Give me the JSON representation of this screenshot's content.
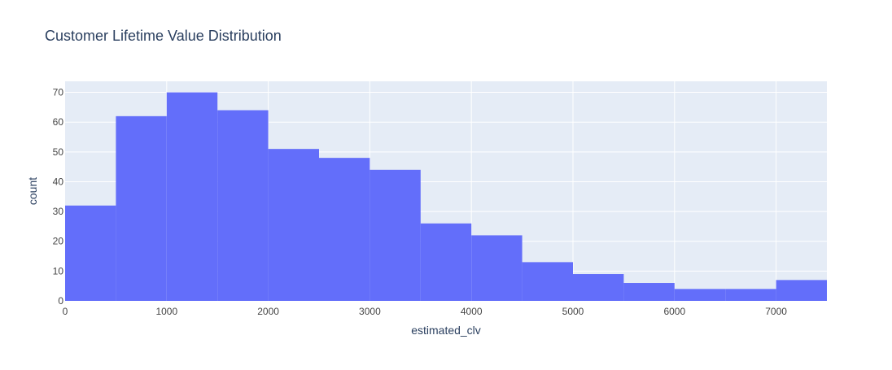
{
  "chart_data": {
    "type": "bar",
    "title": "Customer Lifetime Value Distribution",
    "xlabel": "estimated_clv",
    "ylabel": "count",
    "bin_width": 500,
    "bins": [
      {
        "x0": 0,
        "x1": 500,
        "count": 32
      },
      {
        "x0": 500,
        "x1": 1000,
        "count": 62
      },
      {
        "x0": 1000,
        "x1": 1500,
        "count": 70
      },
      {
        "x0": 1500,
        "x1": 2000,
        "count": 64
      },
      {
        "x0": 2000,
        "x1": 2500,
        "count": 51
      },
      {
        "x0": 2500,
        "x1": 3000,
        "count": 48
      },
      {
        "x0": 3000,
        "x1": 3500,
        "count": 44
      },
      {
        "x0": 3500,
        "x1": 4000,
        "count": 26
      },
      {
        "x0": 4000,
        "x1": 4500,
        "count": 22
      },
      {
        "x0": 4500,
        "x1": 5000,
        "count": 13
      },
      {
        "x0": 5000,
        "x1": 5500,
        "count": 9
      },
      {
        "x0": 5500,
        "x1": 6000,
        "count": 6
      },
      {
        "x0": 6000,
        "x1": 6500,
        "count": 4
      },
      {
        "x0": 6500,
        "x1": 7000,
        "count": 4
      },
      {
        "x0": 7000,
        "x1": 7500,
        "count": 7
      }
    ],
    "xlim": [
      0,
      7500
    ],
    "ylim": [
      0,
      73.7
    ],
    "xticks": [
      0,
      1000,
      2000,
      3000,
      4000,
      5000,
      6000,
      7000
    ],
    "yticks": [
      0,
      10,
      20,
      30,
      40,
      50,
      60,
      70
    ],
    "grid": true,
    "colors": {
      "bar": "#636efa",
      "plot_bg": "#e5ecf6",
      "grid": "#ffffff",
      "text": "#2a3f5f",
      "tick_text": "#444444"
    }
  }
}
